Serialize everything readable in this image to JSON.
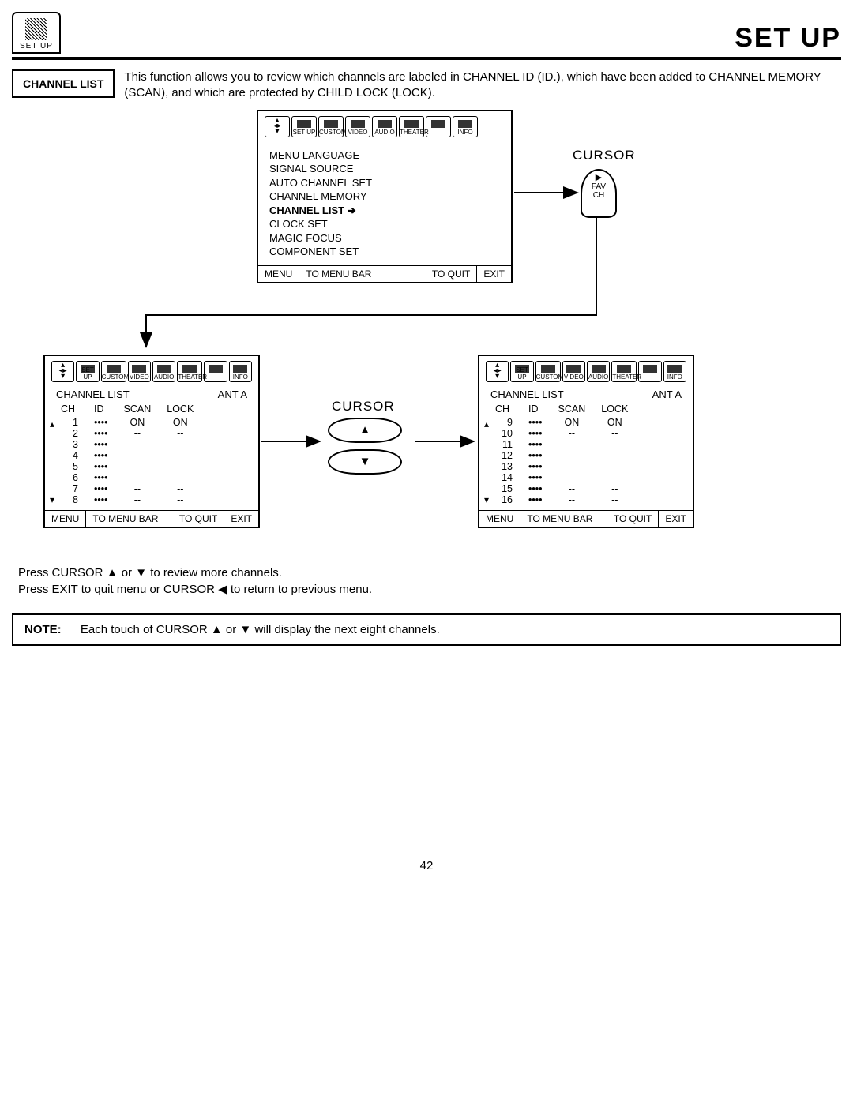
{
  "header": {
    "icon_label": "SET UP",
    "title": "SET UP"
  },
  "section": {
    "label": "CHANNEL LIST",
    "intro": "This function allows you to review which channels are labeled in CHANNEL ID (ID.), which have been added to CHANNEL MEMORY (SCAN), and which are protected by CHILD LOCK (LOCK)."
  },
  "menu_icons": [
    "",
    "SET UP",
    "CUSTOM",
    "VIDEO",
    "AUDIO",
    "THEATER",
    "",
    "INFO"
  ],
  "setup_menu": {
    "items": [
      "MENU LANGUAGE",
      "SIGNAL SOURCE",
      "AUTO CHANNEL SET",
      "CHANNEL MEMORY",
      "CHANNEL LIST",
      "CLOCK SET",
      "MAGIC FOCUS",
      "COMPONENT SET"
    ],
    "selected_index": 4
  },
  "menu_footer": {
    "menu": "MENU",
    "to_menu_bar": "TO MENU BAR",
    "to_quit": "TO QUIT",
    "exit": "EXIT"
  },
  "cursor_label": "CURSOR",
  "remote": {
    "top": "▶",
    "fav": "FAV",
    "ch": "CH"
  },
  "list_title": "CHANNEL LIST",
  "antenna": "ANT A",
  "table_headers": [
    "CH",
    "ID",
    "SCAN",
    "LOCK"
  ],
  "list1": [
    {
      "ch": "1",
      "id": "••••",
      "scan": "ON",
      "lock": "ON"
    },
    {
      "ch": "2",
      "id": "••••",
      "scan": "--",
      "lock": "--"
    },
    {
      "ch": "3",
      "id": "••••",
      "scan": "--",
      "lock": "--"
    },
    {
      "ch": "4",
      "id": "••••",
      "scan": "--",
      "lock": "--"
    },
    {
      "ch": "5",
      "id": "••••",
      "scan": "--",
      "lock": "--"
    },
    {
      "ch": "6",
      "id": "••••",
      "scan": "--",
      "lock": "--"
    },
    {
      "ch": "7",
      "id": "••••",
      "scan": "--",
      "lock": "--"
    },
    {
      "ch": "8",
      "id": "••••",
      "scan": "--",
      "lock": "--"
    }
  ],
  "list2": [
    {
      "ch": "9",
      "id": "••••",
      "scan": "ON",
      "lock": "ON"
    },
    {
      "ch": "10",
      "id": "••••",
      "scan": "--",
      "lock": "--"
    },
    {
      "ch": "11",
      "id": "••••",
      "scan": "--",
      "lock": "--"
    },
    {
      "ch": "12",
      "id": "••••",
      "scan": "--",
      "lock": "--"
    },
    {
      "ch": "13",
      "id": "••••",
      "scan": "--",
      "lock": "--"
    },
    {
      "ch": "14",
      "id": "••••",
      "scan": "--",
      "lock": "--"
    },
    {
      "ch": "15",
      "id": "••••",
      "scan": "--",
      "lock": "--"
    },
    {
      "ch": "16",
      "id": "••••",
      "scan": "--",
      "lock": "--"
    }
  ],
  "cursor_buttons": {
    "up": "▲",
    "down": "▼"
  },
  "instructions": {
    "line1": "Press CURSOR ▲ or ▼ to review more channels.",
    "line2": "Press EXIT to quit menu or CURSOR ◀ to return to previous menu."
  },
  "note": {
    "label": "NOTE:",
    "text": "Each touch of CURSOR ▲ or ▼ will display the next eight channels."
  },
  "page_number": "42"
}
